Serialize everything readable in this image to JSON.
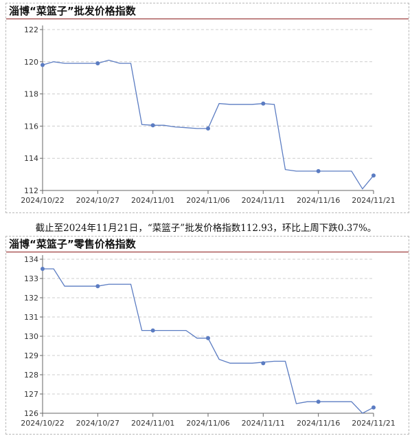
{
  "caption": "截止至2024年11月21日，“菜篮子”批发价格指数112.93，环比上周下跌0.37%。",
  "colors": {
    "line": "#5b7cc2",
    "title_rule": "#8b1a1a",
    "grid": "#cccccc"
  },
  "chart_data": [
    {
      "type": "line",
      "title": "淄博“菜篮子”批发价格指数",
      "xlabel": "",
      "ylabel": "",
      "ylim": [
        112,
        122
      ],
      "yticks": [
        112,
        114,
        116,
        118,
        120,
        122
      ],
      "x_tick_labels": [
        "2024/10/22",
        "2024/10/27",
        "2024/11/01",
        "2024/11/06",
        "2024/11/11",
        "2024/11/16",
        "2024/11/21"
      ],
      "grid": true,
      "series": [
        {
          "x": [
            0,
            1,
            2,
            4,
            5,
            6,
            7,
            8,
            9,
            10,
            11,
            12,
            13,
            14,
            15,
            16,
            17,
            18,
            19,
            20,
            21,
            22,
            23,
            24,
            25,
            26,
            27,
            28,
            29,
            30
          ],
          "y": [
            119.8,
            120.0,
            119.9,
            119.9,
            119.9,
            120.1,
            119.9,
            119.9,
            116.1,
            116.05,
            116.05,
            115.95,
            115.9,
            115.85,
            115.85,
            117.4,
            117.35,
            117.35,
            117.35,
            117.4,
            117.35,
            113.3,
            113.2,
            113.2,
            113.2,
            113.2,
            113.2,
            113.2,
            112.1,
            112.93
          ],
          "markers_x": [
            0,
            5,
            10,
            15,
            20,
            25,
            30
          ],
          "markers_y": [
            119.8,
            119.9,
            116.05,
            115.85,
            117.4,
            113.2,
            112.93
          ]
        }
      ]
    },
    {
      "type": "line",
      "title": "淄博“菜篮子”零售价格指数",
      "xlabel": "",
      "ylabel": "",
      "ylim": [
        126,
        134
      ],
      "yticks": [
        126,
        127,
        128,
        129,
        130,
        131,
        132,
        133,
        134
      ],
      "x_tick_labels": [
        "2024/10/22",
        "2024/10/27",
        "2024/11/01",
        "2024/11/06",
        "2024/11/11",
        "2024/11/16",
        "2024/11/21"
      ],
      "grid": true,
      "series": [
        {
          "x": [
            0,
            1,
            2,
            5,
            6,
            7,
            8,
            9,
            10,
            11,
            12,
            13,
            14,
            15,
            16,
            17,
            18,
            19,
            20,
            21,
            22,
            23,
            24,
            25,
            26,
            27,
            28,
            29,
            30
          ],
          "y": [
            133.5,
            133.5,
            132.6,
            132.6,
            132.7,
            132.7,
            132.7,
            130.3,
            130.3,
            130.3,
            130.3,
            130.3,
            129.9,
            129.9,
            128.8,
            128.6,
            128.6,
            128.6,
            128.65,
            128.7,
            128.7,
            126.5,
            126.6,
            126.6,
            126.6,
            126.6,
            126.6,
            126.0,
            126.3
          ],
          "markers_x": [
            0,
            5,
            10,
            15,
            20,
            25,
            30
          ],
          "markers_y": [
            133.5,
            132.6,
            130.3,
            129.9,
            128.6,
            126.6,
            126.3
          ]
        }
      ]
    }
  ]
}
